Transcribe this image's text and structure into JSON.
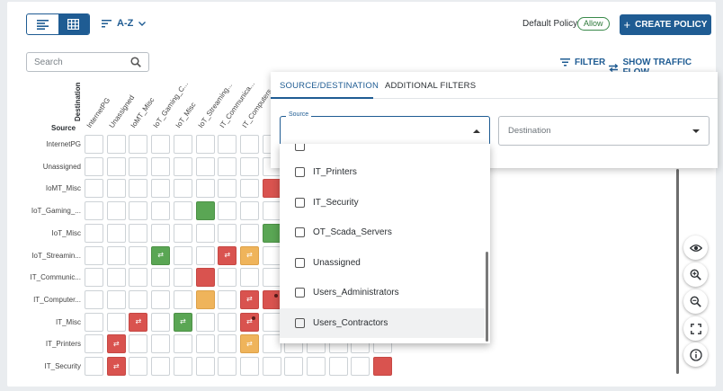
{
  "toolbar": {
    "sort_label": "A-Z",
    "policy_label": "Default Policy",
    "policy_value": "Allow",
    "create_label": "CREATE POLICY"
  },
  "search": {
    "placeholder": "Search"
  },
  "actions": {
    "filter": "FILTER",
    "traffic_flow": "SHOW TRAFFIC FLOW"
  },
  "matrix": {
    "destination_label": "Destination",
    "source_label": "Source",
    "columns": [
      "InternetPG",
      "Unassigned",
      "IoMT_Misc",
      "IoT_Gaming_C...",
      "IoT_Misc",
      "IoT_Streaming...",
      "IT_Communica...",
      "IT_Computers..."
    ],
    "rows": [
      "InternetPG",
      "Unassigned",
      "IoMT_Misc",
      "IoT_Gaming_...",
      "IoT_Misc",
      "IoT_Streamin...",
      "IT_Communic...",
      "IT_Computer...",
      "IT_Misc",
      "IT_Printers",
      "IT_Security"
    ],
    "colors": {
      "red": "#d9534f",
      "green": "#5aa654",
      "orange": "#efb45b"
    }
  },
  "filter_panel": {
    "tabs": [
      "SOURCE/DESTINATION",
      "ADDITIONAL FILTERS"
    ],
    "source_label": "Source",
    "destination_placeholder": "Destination",
    "options": [
      "IT_Printers",
      "IT_Security",
      "OT_Scada_Servers",
      "Unassigned",
      "Users_Administrators",
      "Users_Contractors"
    ]
  }
}
